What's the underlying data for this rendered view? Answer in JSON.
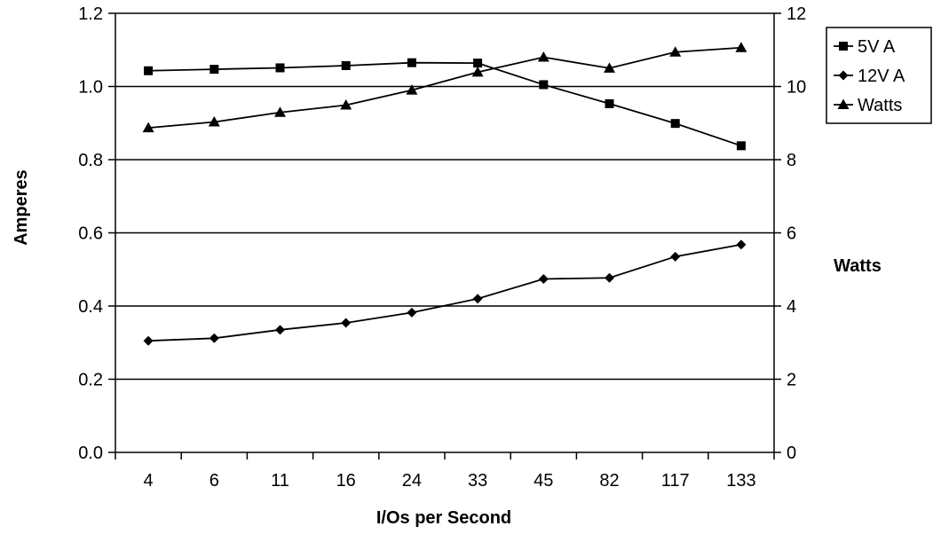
{
  "chart_data": {
    "type": "line",
    "xlabel": "I/Os per Second",
    "ylabel": "Amperes",
    "y2label": "Watts",
    "categories": [
      "4",
      "6",
      "11",
      "16",
      "24",
      "33",
      "45",
      "82",
      "117",
      "133"
    ],
    "ylim": [
      0,
      1.2
    ],
    "y_ticks": [
      "0.0",
      "0.2",
      "0.4",
      "0.6",
      "0.8",
      "1.0",
      "1.2"
    ],
    "y2lim": [
      0,
      12
    ],
    "y2_ticks": [
      "0",
      "2",
      "4",
      "6",
      "8",
      "10",
      "12"
    ],
    "grid": "horizontal",
    "legend_position": "top-right",
    "series": [
      {
        "name": "5V A",
        "axis": "left",
        "marker": "square",
        "values": [
          1.043,
          1.047,
          1.051,
          1.057,
          1.065,
          1.064,
          1.005,
          0.953,
          0.899,
          0.838
        ]
      },
      {
        "name": "12V A",
        "axis": "left",
        "marker": "diamond",
        "values": [
          0.305,
          0.312,
          0.335,
          0.354,
          0.382,
          0.42,
          0.474,
          0.477,
          0.535,
          0.568
        ]
      },
      {
        "name": "Watts",
        "axis": "right",
        "marker": "triangle",
        "values": [
          8.87,
          9.03,
          9.29,
          9.49,
          9.9,
          10.39,
          10.8,
          10.5,
          10.94,
          11.06
        ]
      }
    ],
    "colors": {
      "line": "#000000",
      "grid": "#000000",
      "background": "#ffffff"
    }
  }
}
